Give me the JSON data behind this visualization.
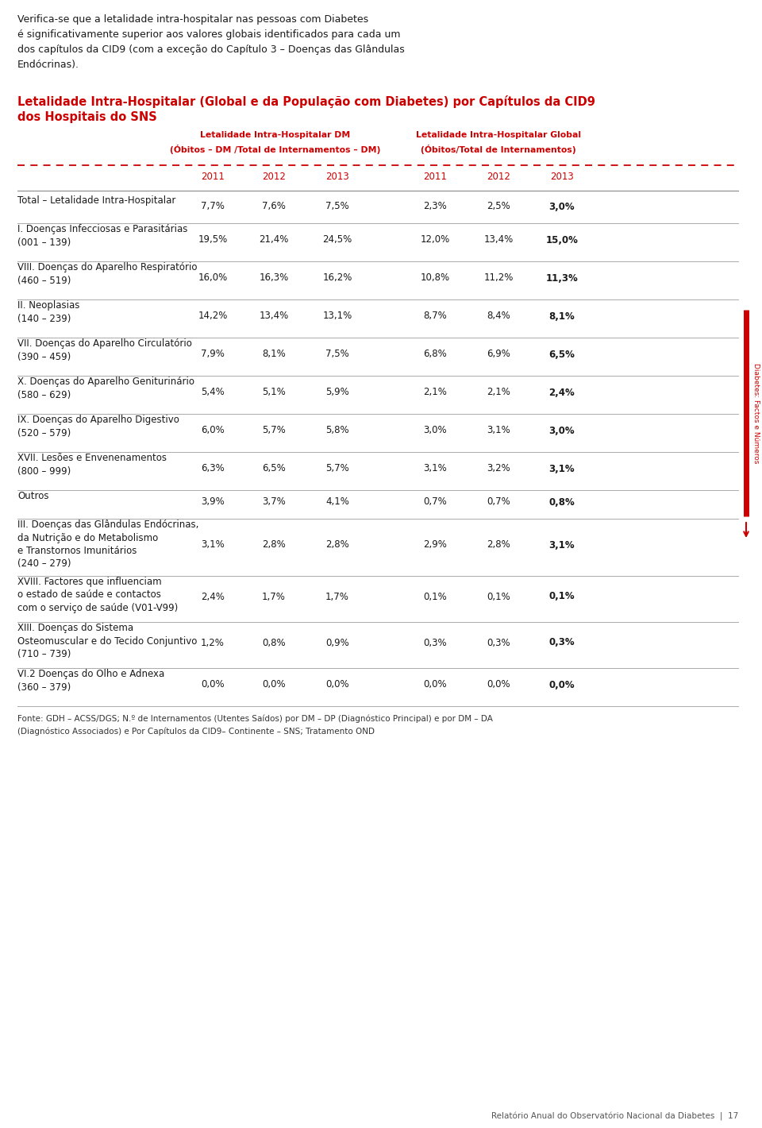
{
  "intro_text": "Verifica-se que a letalidade intra-hospitalar nas pessoas com Diabetes\né significativamente superior aos valores globais identificados para cada um\ndos capítulos da CID9 (com a exceção do Capítulo 3 – Doenças das Glândulas\nEndócrinas).",
  "title_line1": "Letalidade Intra-Hospitalar (Global e da População com Diabetes) por Capítulos da CID9",
  "title_line2": "dos Hospitais do SNS",
  "col_header_dm_line1": "Letalidade Intra-Hospitalar DM",
  "col_header_dm_line2": "(Óbitos – DM /Total de Internamentos – DM)",
  "col_header_global_line1": "Letalidade Intra-Hospitalar Global",
  "col_header_global_line2": "(Óbitos/Total de Internamentos)",
  "years": [
    "2011",
    "2012",
    "2013",
    "2011",
    "2012",
    "2013"
  ],
  "rows": [
    {
      "label": "Total – Letalidade Intra-Hospitalar",
      "values": [
        "7,7%",
        "7,6%",
        "7,5%",
        "2,3%",
        "2,5%",
        "3,0%"
      ],
      "n_label_lines": 1
    },
    {
      "label": "I. Doenças Infecciosas e Parasitárias\n(001 – 139)",
      "values": [
        "19,5%",
        "21,4%",
        "24,5%",
        "12,0%",
        "13,4%",
        "15,0%"
      ],
      "n_label_lines": 2
    },
    {
      "label": "VIII. Doenças do Aparelho Respiratório\n(460 – 519)",
      "values": [
        "16,0%",
        "16,3%",
        "16,2%",
        "10,8%",
        "11,2%",
        "11,3%"
      ],
      "n_label_lines": 2
    },
    {
      "label": "II. Neoplasias\n(140 – 239)",
      "values": [
        "14,2%",
        "13,4%",
        "13,1%",
        "8,7%",
        "8,4%",
        "8,1%"
      ],
      "n_label_lines": 2
    },
    {
      "label": "VII. Doenças do Aparelho Circulatório\n(390 – 459)",
      "values": [
        "7,9%",
        "8,1%",
        "7,5%",
        "6,8%",
        "6,9%",
        "6,5%"
      ],
      "n_label_lines": 2
    },
    {
      "label": "X. Doenças do Aparelho Geniturinário\n(580 – 629)",
      "values": [
        "5,4%",
        "5,1%",
        "5,9%",
        "2,1%",
        "2,1%",
        "2,4%"
      ],
      "n_label_lines": 2
    },
    {
      "label": "IX. Doenças do Aparelho Digestivo\n(520 – 579)",
      "values": [
        "6,0%",
        "5,7%",
        "5,8%",
        "3,0%",
        "3,1%",
        "3,0%"
      ],
      "n_label_lines": 2
    },
    {
      "label": "XVII. Lesões e Envenenamentos\n(800 – 999)",
      "values": [
        "6,3%",
        "6,5%",
        "5,7%",
        "3,1%",
        "3,2%",
        "3,1%"
      ],
      "n_label_lines": 2
    },
    {
      "label": "Outros",
      "values": [
        "3,9%",
        "3,7%",
        "4,1%",
        "0,7%",
        "0,7%",
        "0,8%"
      ],
      "n_label_lines": 1
    },
    {
      "label": "III. Doenças das Glândulas Endócrinas,\nda Nutrição e do Metabolismo\ne Transtornos Imunitários\n(240 – 279)",
      "values": [
        "3,1%",
        "2,8%",
        "2,8%",
        "2,9%",
        "2,8%",
        "3,1%"
      ],
      "n_label_lines": 4
    },
    {
      "label": "XVIII. Factores que influenciam\no estado de saúde e contactos\ncom o serviço de saúde (V01-V99)",
      "values": [
        "2,4%",
        "1,7%",
        "1,7%",
        "0,1%",
        "0,1%",
        "0,1%"
      ],
      "n_label_lines": 3
    },
    {
      "label": "XIII. Doenças do Sistema\nOsteomuscular e do Tecido Conjuntivo\n(710 – 739)",
      "values": [
        "1,2%",
        "0,8%",
        "0,9%",
        "0,3%",
        "0,3%",
        "0,3%"
      ],
      "n_label_lines": 3
    },
    {
      "label": "VI.2 Doenças do Olho e Adnexa\n(360 – 379)",
      "values": [
        "0,0%",
        "0,0%",
        "0,0%",
        "0,0%",
        "0,0%",
        "0,0%"
      ],
      "n_label_lines": 2
    }
  ],
  "fonte_text": "Fonte: GDH – ACSS/DGS; N.º de Internamentos (Utentes Saídos) por DM – DP (Diagnóstico Principal) e por DM – DA\n(Diagnóstico Associados) e Por Capítulos da CID9– Continente – SNS; Tratamento OND",
  "side_text": "Diabetes: Factos e Números",
  "page_text": "Relatório Anual do Observatório Nacional da Diabetes  |  17",
  "title_color": "#cc0000",
  "header_color": "#cc0000",
  "body_color": "#1a1a1a",
  "bg_color": "#ffffff"
}
